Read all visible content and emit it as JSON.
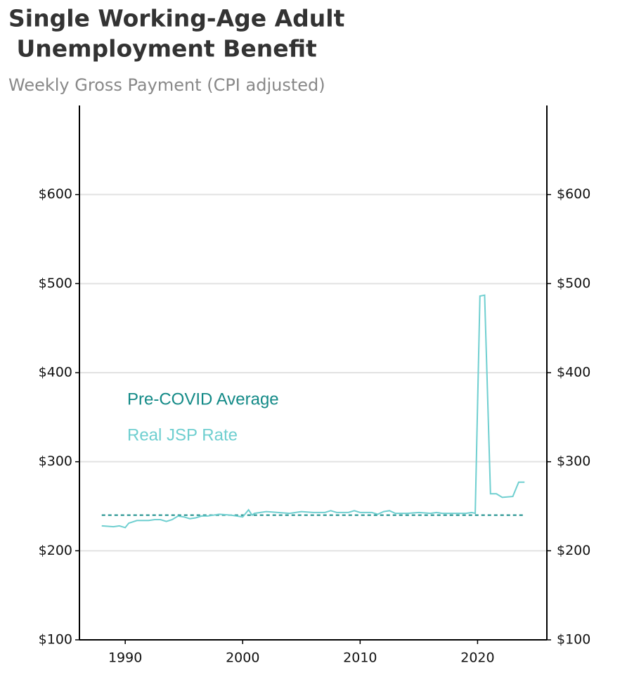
{
  "chart_data": {
    "type": "line",
    "title": [
      "Single Working-Age Adult",
      " Unemployment Benefit"
    ],
    "subtitle": "Weekly Gross Payment (CPI adjusted)",
    "xlim": [
      1986.1,
      2025.9
    ],
    "xticks": [
      1990,
      2000,
      2010,
      2020
    ],
    "ylim": [
      100,
      700
    ],
    "yticks": [
      {
        "value": 100,
        "label": "$100"
      },
      {
        "value": 200,
        "label": "$200"
      },
      {
        "value": 300,
        "label": "$300"
      },
      {
        "value": 400,
        "label": "$400"
      },
      {
        "value": 500,
        "label": "$500"
      },
      {
        "value": 600,
        "label": "$600"
      }
    ],
    "y2lim": [
      100,
      700
    ],
    "y2ticks": [
      {
        "value": 100,
        "label": "$100"
      },
      {
        "value": 200,
        "label": "$200"
      },
      {
        "value": 300,
        "label": "$300"
      },
      {
        "value": 400,
        "label": "$400"
      },
      {
        "value": 500,
        "label": "$500"
      },
      {
        "value": 600,
        "label": "$600"
      }
    ],
    "grid": true,
    "series": [
      {
        "name": "Pre-COVID Average",
        "color": "#138a87",
        "dashed": true,
        "x": [
          1988,
          2024
        ],
        "values": [
          240,
          240
        ]
      },
      {
        "name": "Real JSP Rate",
        "color": "#6fcfd0",
        "x": [
          1988,
          1988.5,
          1989,
          1989.5,
          1990,
          1990.3,
          1991,
          1992,
          1992.5,
          1993,
          1993.5,
          1994,
          1994.5,
          1995,
          1995.5,
          1996,
          1996.5,
          1997,
          1998,
          1999,
          2000,
          2000.5,
          2000.8,
          2001,
          2002,
          2003,
          2004,
          2005,
          2006,
          2007,
          2007.5,
          2008,
          2009,
          2009.5,
          2010,
          2011,
          2011.5,
          2012,
          2012.5,
          2013,
          2014,
          2015,
          2016,
          2016.5,
          2017,
          2018,
          2019,
          2019.5,
          2019.8,
          2020.2,
          2020.6,
          2021.1,
          2021.6,
          2022.1,
          2023,
          2023.5,
          2024
        ],
        "values": [
          228,
          227.5,
          227,
          228,
          226,
          231,
          234,
          234,
          235,
          235,
          233,
          235,
          239,
          238,
          236,
          237,
          239,
          239,
          241,
          240,
          238,
          246,
          240,
          242,
          244,
          243,
          242,
          244,
          243,
          243,
          245,
          243,
          243,
          245,
          243,
          243,
          241,
          244,
          245,
          242,
          242,
          243,
          242,
          243,
          242,
          242,
          242,
          243,
          242,
          486,
          487,
          264,
          264,
          260,
          261,
          277,
          277
        ]
      }
    ]
  }
}
